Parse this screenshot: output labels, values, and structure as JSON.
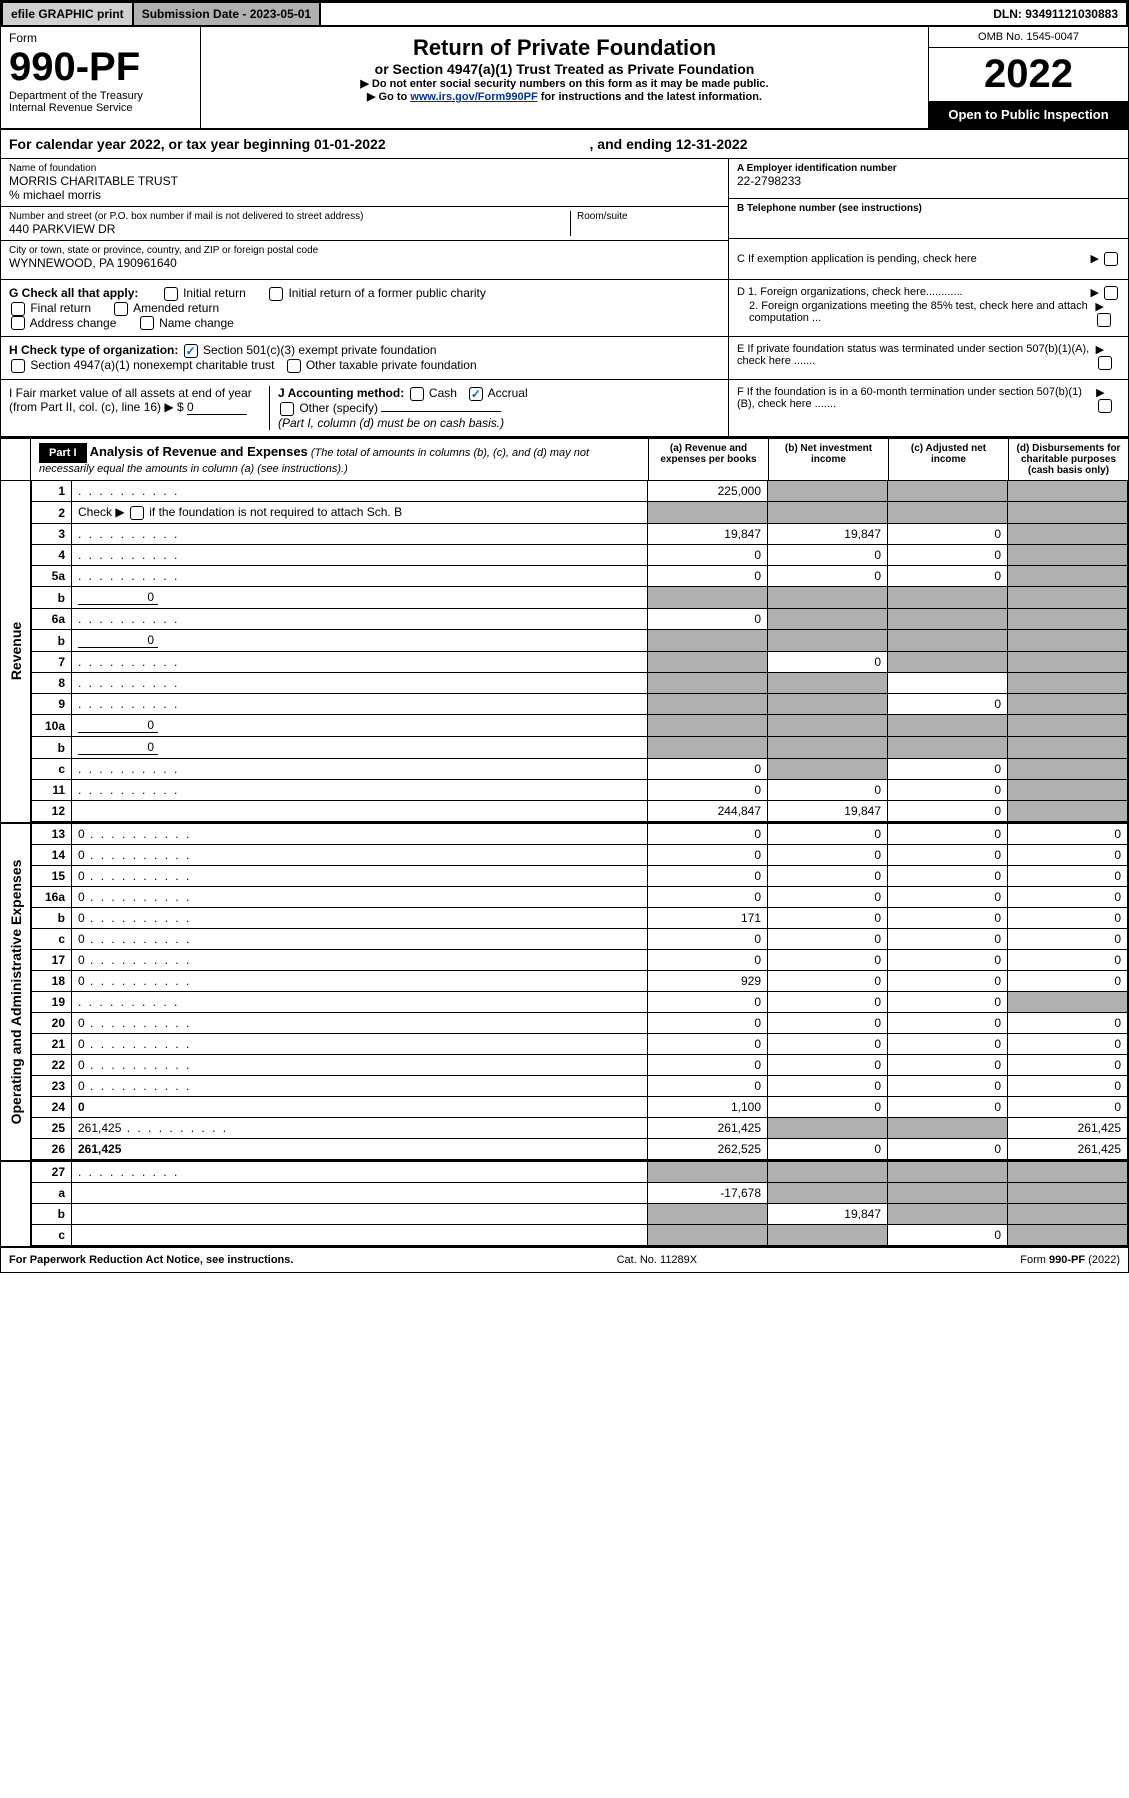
{
  "top": {
    "efile": "efile GRAPHIC print",
    "sub_label": "Submission Date - 2023-05-01",
    "dln": "DLN: 93491121030883"
  },
  "header": {
    "form_word": "Form",
    "form_num": "990-PF",
    "dept": "Department of the Treasury",
    "irs": "Internal Revenue Service",
    "title": "Return of Private Foundation",
    "subtitle": "or Section 4947(a)(1) Trust Treated as Private Foundation",
    "instr1": "▶ Do not enter social security numbers on this form as it may be made public.",
    "instr2_pre": "▶ Go to ",
    "instr2_link": "www.irs.gov/Form990PF",
    "instr2_post": " for instructions and the latest information.",
    "omb": "OMB No. 1545-0047",
    "year": "2022",
    "inspect": "Open to Public Inspection"
  },
  "cal": {
    "text_a": "For calendar year 2022, or tax year beginning 01-01-2022",
    "text_b": ", and ending 12-31-2022"
  },
  "info": {
    "name_label": "Name of foundation",
    "name": "MORRIS CHARITABLE TRUST",
    "care_of": "% michael morris",
    "addr_label": "Number and street (or P.O. box number if mail is not delivered to street address)",
    "addr": "440 PARKVIEW DR",
    "room_label": "Room/suite",
    "city_label": "City or town, state or province, country, and ZIP or foreign postal code",
    "city": "WYNNEWOOD, PA  190961640",
    "ein_label": "A Employer identification number",
    "ein": "22-2798233",
    "phone_label": "B Telephone number (see instructions)",
    "c_label": "C If exemption application is pending, check here"
  },
  "g": {
    "label": "G Check all that apply:",
    "opts": [
      "Initial return",
      "Initial return of a former public charity",
      "Final return",
      "Amended return",
      "Address change",
      "Name change"
    ],
    "d1": "D 1. Foreign organizations, check here............",
    "d2": "2. Foreign organizations meeting the 85% test, check here and attach computation ...",
    "e": "E  If private foundation status was terminated under section 507(b)(1)(A), check here .......",
    "f": "F  If the foundation is in a 60-month termination under section 507(b)(1)(B), check here .......",
    "h_label": "H Check type of organization:",
    "h1": "Section 501(c)(3) exempt private foundation",
    "h2": "Section 4947(a)(1) nonexempt charitable trust",
    "h3": "Other taxable private foundation",
    "i_label": "I Fair market value of all assets at end of year (from Part II, col. (c), line 16)",
    "i_val": "0",
    "j_label": "J Accounting method:",
    "j_cash": "Cash",
    "j_accrual": "Accrual",
    "j_other": "Other (specify)",
    "j_note": "(Part I, column (d) must be on cash basis.)"
  },
  "part1": {
    "tag": "Part I",
    "title": "Analysis of Revenue and Expenses",
    "note": "(The total of amounts in columns (b), (c), and (d) may not necessarily equal the amounts in column (a) (see instructions).)",
    "col_a": "(a)   Revenue and expenses per books",
    "col_b": "(b)   Net investment income",
    "col_c": "(c)   Adjusted net income",
    "col_d": "(d)   Disbursements for charitable purposes (cash basis only)"
  },
  "side": {
    "rev": "Revenue",
    "exp": "Operating and Administrative Expenses"
  },
  "rows": {
    "r1": {
      "n": "1",
      "d": "",
      "a": "225,000",
      "b": "",
      "c": "",
      "shade_b": true,
      "shade_c": true,
      "shade_d": true
    },
    "r2": {
      "n": "2",
      "d_pre": "Check ▶ ",
      "d_post": " if the foundation is not required to attach Sch. B",
      "a": "",
      "b": "",
      "c": "",
      "d": "",
      "shade_a": true,
      "shade_b": true,
      "shade_c": true,
      "shade_d": true
    },
    "r3": {
      "n": "3",
      "d": "",
      "a": "19,847",
      "b": "19,847",
      "c": "0",
      "shade_d": true
    },
    "r4": {
      "n": "4",
      "d": "",
      "a": "0",
      "b": "0",
      "c": "0",
      "shade_d": true
    },
    "r5a": {
      "n": "5a",
      "d": "",
      "a": "0",
      "b": "0",
      "c": "0",
      "shade_d": true
    },
    "r5b": {
      "n": "b",
      "d": "",
      "inline": "0",
      "a": "",
      "b": "",
      "c": "",
      "shade_a": true,
      "shade_b": true,
      "shade_c": true,
      "shade_d": true
    },
    "r6a": {
      "n": "6a",
      "d": "",
      "a": "0",
      "b": "",
      "c": "",
      "shade_b": true,
      "shade_c": true,
      "shade_d": true
    },
    "r6b": {
      "n": "b",
      "d": "",
      "inline": "0",
      "a": "",
      "b": "",
      "c": "",
      "shade_a": true,
      "shade_b": true,
      "shade_c": true,
      "shade_d": true
    },
    "r7": {
      "n": "7",
      "d": "",
      "a": "",
      "b": "0",
      "c": "",
      "shade_a": true,
      "shade_c": true,
      "shade_d": true
    },
    "r8": {
      "n": "8",
      "d": "",
      "a": "",
      "b": "",
      "c": "",
      "shade_a": true,
      "shade_b": true,
      "shade_d": true
    },
    "r9": {
      "n": "9",
      "d": "",
      "a": "",
      "b": "",
      "c": "0",
      "shade_a": true,
      "shade_b": true,
      "shade_d": true
    },
    "r10a": {
      "n": "10a",
      "d": "",
      "inline": "0",
      "a": "",
      "b": "",
      "c": "",
      "shade_a": true,
      "shade_b": true,
      "shade_c": true,
      "shade_d": true
    },
    "r10b": {
      "n": "b",
      "d": "",
      "inline": "0",
      "a": "",
      "b": "",
      "c": "",
      "shade_a": true,
      "shade_b": true,
      "shade_c": true,
      "shade_d": true
    },
    "r10c": {
      "n": "c",
      "d": "",
      "a": "0",
      "b": "",
      "c": "0",
      "shade_b": true,
      "shade_d": true
    },
    "r11": {
      "n": "11",
      "d": "",
      "a": "0",
      "b": "0",
      "c": "0",
      "shade_d": true
    },
    "r12": {
      "n": "12",
      "d": "",
      "a": "244,847",
      "b": "19,847",
      "c": "0",
      "bold": true,
      "shade_d": true
    },
    "r13": {
      "n": "13",
      "d": "0",
      "a": "0",
      "b": "0",
      "c": "0"
    },
    "r14": {
      "n": "14",
      "d": "0",
      "a": "0",
      "b": "0",
      "c": "0"
    },
    "r15": {
      "n": "15",
      "d": "0",
      "a": "0",
      "b": "0",
      "c": "0"
    },
    "r16a": {
      "n": "16a",
      "d": "0",
      "a": "0",
      "b": "0",
      "c": "0"
    },
    "r16b": {
      "n": "b",
      "d": "0",
      "a": "171",
      "b": "0",
      "c": "0"
    },
    "r16c": {
      "n": "c",
      "d": "0",
      "a": "0",
      "b": "0",
      "c": "0"
    },
    "r17": {
      "n": "17",
      "d": "0",
      "a": "0",
      "b": "0",
      "c": "0"
    },
    "r18": {
      "n": "18",
      "d": "0",
      "a": "929",
      "b": "0",
      "c": "0"
    },
    "r19": {
      "n": "19",
      "d": "",
      "a": "0",
      "b": "0",
      "c": "0",
      "shade_d": true
    },
    "r20": {
      "n": "20",
      "d": "0",
      "a": "0",
      "b": "0",
      "c": "0"
    },
    "r21": {
      "n": "21",
      "d": "0",
      "a": "0",
      "b": "0",
      "c": "0"
    },
    "r22": {
      "n": "22",
      "d": "0",
      "a": "0",
      "b": "0",
      "c": "0"
    },
    "r23": {
      "n": "23",
      "d": "0",
      "a": "0",
      "b": "0",
      "c": "0"
    },
    "r24": {
      "n": "24",
      "d": "0",
      "a": "1,100",
      "b": "0",
      "c": "0",
      "bold": true
    },
    "r25": {
      "n": "25",
      "d": "261,425",
      "a": "261,425",
      "b": "",
      "c": "",
      "shade_b": true,
      "shade_c": true
    },
    "r26": {
      "n": "26",
      "d": "261,425",
      "a": "262,525",
      "b": "0",
      "c": "0",
      "bold": true
    },
    "r27": {
      "n": "27",
      "d": "",
      "a": "",
      "b": "",
      "c": "",
      "shade_a": true,
      "shade_b": true,
      "shade_c": true,
      "shade_d": true
    },
    "r27a": {
      "n": "a",
      "d": "",
      "a": "-17,678",
      "b": "",
      "c": "",
      "bold": true,
      "shade_b": true,
      "shade_c": true,
      "shade_d": true
    },
    "r27b": {
      "n": "b",
      "d": "",
      "a": "",
      "b": "19,847",
      "c": "",
      "bold": true,
      "shade_a": true,
      "shade_c": true,
      "shade_d": true
    },
    "r27c": {
      "n": "c",
      "d": "",
      "a": "",
      "b": "",
      "c": "0",
      "bold": true,
      "shade_a": true,
      "shade_b": true,
      "shade_d": true
    }
  },
  "footer": {
    "left": "For Paperwork Reduction Act Notice, see instructions.",
    "mid": "Cat. No. 11289X",
    "right": "Form 990-PF (2022)"
  }
}
